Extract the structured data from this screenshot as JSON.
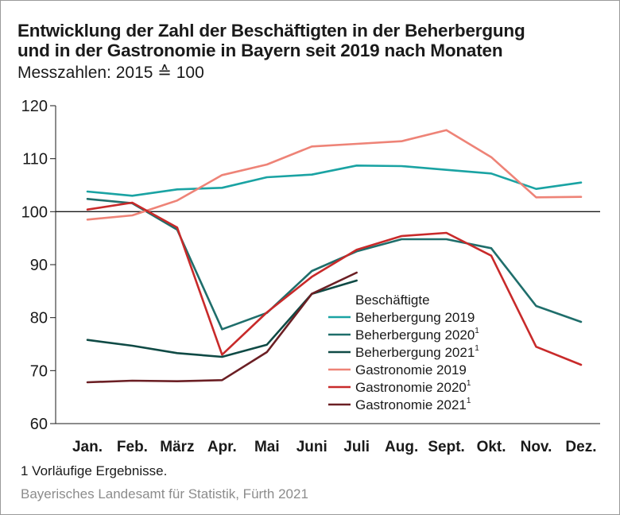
{
  "title_line1": "Entwicklung der Zahl der Beschäftigten in der Beherbergung",
  "title_line2": "und in der Gastronomie in Bayern seit 2019 nach Monaten",
  "subtitle": "Messzahlen: 2015 ≙ 100",
  "footnote": "1  Vorläufige Ergebnisse.",
  "source": "Bayerisches Landesamt für Statistik, Fürth 2021",
  "chart_data": {
    "type": "line",
    "categories": [
      "Jan.",
      "Feb.",
      "März",
      "Apr.",
      "Mai",
      "Juni",
      "Juli",
      "Aug.",
      "Sept.",
      "Okt.",
      "Nov.",
      "Dez."
    ],
    "ylim": [
      60,
      120
    ],
    "yticks": [
      60,
      70,
      80,
      90,
      100,
      110,
      120
    ],
    "reference_line": 100,
    "grid": false,
    "legend_title": "Beschäftigte",
    "legend_position": "center-right",
    "series": [
      {
        "name": "Beherbergung 2019",
        "footnote": "",
        "color": "#1aa3a3",
        "values": [
          103.8,
          103.0,
          104.2,
          104.5,
          106.5,
          107.0,
          108.7,
          108.6,
          107.9,
          107.2,
          104.3,
          105.5
        ]
      },
      {
        "name": "Beherbergung 2020",
        "footnote": "1",
        "color": "#1f6e6b",
        "values": [
          102.4,
          101.6,
          96.6,
          77.8,
          80.9,
          88.8,
          92.5,
          94.8,
          94.8,
          93.1,
          82.2,
          79.2
        ]
      },
      {
        "name": "Beherbergung 2021",
        "footnote": "1",
        "color": "#0f4a45",
        "values": [
          75.8,
          74.7,
          73.3,
          72.6,
          74.9,
          84.5,
          87.0,
          null,
          null,
          null,
          null,
          null
        ]
      },
      {
        "name": "Gastronomie 2019",
        "footnote": "",
        "color": "#ee8377",
        "values": [
          98.5,
          99.3,
          102.1,
          106.9,
          108.9,
          112.3,
          112.8,
          113.3,
          115.4,
          110.3,
          102.7,
          102.8
        ]
      },
      {
        "name": "Gastronomie 2020",
        "footnote": "1",
        "color": "#c82a2a",
        "values": [
          100.4,
          101.7,
          97.0,
          73.0,
          81.0,
          87.7,
          92.8,
          95.4,
          96.0,
          91.7,
          74.5,
          71.1
        ]
      },
      {
        "name": "Gastronomie 2021",
        "footnote": "1",
        "color": "#6b1f24",
        "values": [
          67.8,
          68.1,
          68.0,
          68.2,
          73.5,
          84.5,
          88.5,
          null,
          null,
          null,
          null,
          null
        ]
      }
    ]
  }
}
